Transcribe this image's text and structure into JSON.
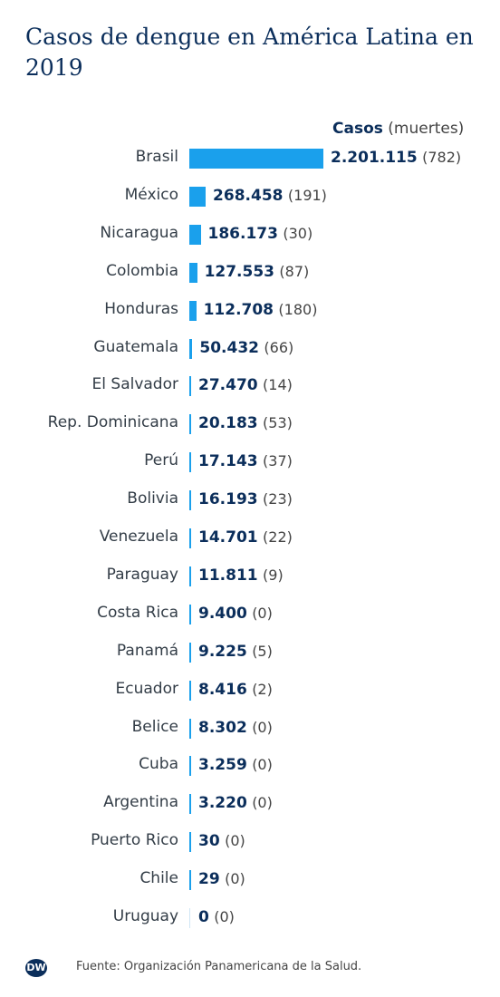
{
  "title": "Casos de dengue en América Latina en 2019",
  "legend": {
    "bold": "Casos",
    "rest": "(muertes)"
  },
  "chart_data": {
    "type": "bar",
    "orientation": "horizontal",
    "title": "Casos de dengue en América Latina en 2019",
    "categories": [
      "Brasil",
      "México",
      "Nicaragua",
      "Colombia",
      "Honduras",
      "Guatemala",
      "El Salvador",
      "Rep. Dominicana",
      "Perú",
      "Bolivia",
      "Venezuela",
      "Paraguay",
      "Costa Rica",
      "Panamá",
      "Ecuador",
      "Belice",
      "Cuba",
      "Argentina",
      "Puerto Rico",
      "Chile",
      "Uruguay"
    ],
    "values": [
      2201115,
      268458,
      186173,
      127553,
      112708,
      50432,
      27470,
      20183,
      17143,
      16193,
      14701,
      11811,
      9400,
      9225,
      8416,
      8302,
      3259,
      3220,
      30,
      29,
      0
    ],
    "value_labels": [
      "2.201.115",
      "268.458",
      "186.173",
      "127.553",
      "112.708",
      "50.432",
      "27.470",
      "20.183",
      "17.143",
      "16.193",
      "14.701",
      "11.811",
      "9.400",
      "9.225",
      "8.416",
      "8.302",
      "3.259",
      "3.220",
      "30",
      "29",
      "0"
    ],
    "deaths": [
      782,
      191,
      30,
      87,
      180,
      66,
      14,
      53,
      37,
      23,
      22,
      9,
      0,
      5,
      2,
      0,
      0,
      0,
      0,
      0,
      0
    ],
    "death_labels": [
      "(782)",
      "(191)",
      "(30)",
      "(87)",
      "(180)",
      "(66)",
      "(14)",
      "(53)",
      "(37)",
      "(23)",
      "(22)",
      "(9)",
      "(0)",
      "(5)",
      "(2)",
      "(0)",
      "(0)",
      "(0)",
      "(0)",
      "(0)",
      "(0)"
    ],
    "bar_color": "#1aa0ec"
  },
  "footer": {
    "logo": "DW",
    "source": "Fuente: Organización Panamericana de la Salud."
  }
}
